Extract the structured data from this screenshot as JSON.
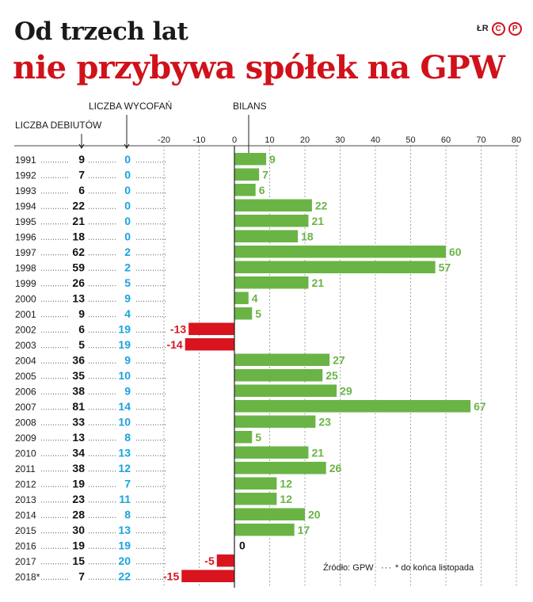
{
  "title_line1": "Od trzech lat",
  "title_line2": "nie przybywa spółek na GPW",
  "brand": {
    "initials": "ŁR",
    "mark": "P",
    "icon": "cp-logo-icon"
  },
  "headers": {
    "withdrawals": "LICZBA WYCOFAŃ",
    "balance": "BILANS",
    "debuts": "LICZBA DEBIUTÓW"
  },
  "source": "Źródło: GPW",
  "footnote": "* do końca listopada",
  "colors": {
    "positive": "#6ab446",
    "negative": "#d9141f",
    "withdrawals": "#1aa3df",
    "title_red": "#d0121b"
  },
  "chart_data": {
    "type": "bar",
    "orientation": "horizontal",
    "xlim": [
      -20,
      80
    ],
    "xticks": [
      "-20",
      "-10",
      "0",
      "10",
      "20",
      "30",
      "40",
      "50",
      "60",
      "70",
      "80"
    ],
    "grid": true,
    "rows": [
      {
        "year": "1991",
        "debuts": "9",
        "withdrawals": "0",
        "balance": 9
      },
      {
        "year": "1992",
        "debuts": "7",
        "withdrawals": "0",
        "balance": 7
      },
      {
        "year": "1993",
        "debuts": "6",
        "withdrawals": "0",
        "balance": 6
      },
      {
        "year": "1994",
        "debuts": "22",
        "withdrawals": "0",
        "balance": 22
      },
      {
        "year": "1995",
        "debuts": "21",
        "withdrawals": "0",
        "balance": 21
      },
      {
        "year": "1996",
        "debuts": "18",
        "withdrawals": "0",
        "balance": 18
      },
      {
        "year": "1997",
        "debuts": "62",
        "withdrawals": "2",
        "balance": 60
      },
      {
        "year": "1998",
        "debuts": "59",
        "withdrawals": "2",
        "balance": 57
      },
      {
        "year": "1999",
        "debuts": "26",
        "withdrawals": "5",
        "balance": 21
      },
      {
        "year": "2000",
        "debuts": "13",
        "withdrawals": "9",
        "balance": 4
      },
      {
        "year": "2001",
        "debuts": "9",
        "withdrawals": "4",
        "balance": 5
      },
      {
        "year": "2002",
        "debuts": "6",
        "withdrawals": "19",
        "balance": -13
      },
      {
        "year": "2003",
        "debuts": "5",
        "withdrawals": "19",
        "balance": -14
      },
      {
        "year": "2004",
        "debuts": "36",
        "withdrawals": "9",
        "balance": 27
      },
      {
        "year": "2005",
        "debuts": "35",
        "withdrawals": "10",
        "balance": 25
      },
      {
        "year": "2006",
        "debuts": "38",
        "withdrawals": "9",
        "balance": 29
      },
      {
        "year": "2007",
        "debuts": "81",
        "withdrawals": "14",
        "balance": 67
      },
      {
        "year": "2008",
        "debuts": "33",
        "withdrawals": "10",
        "balance": 23
      },
      {
        "year": "2009",
        "debuts": "13",
        "withdrawals": "8",
        "balance": 5
      },
      {
        "year": "2010",
        "debuts": "34",
        "withdrawals": "13",
        "balance": 21
      },
      {
        "year": "2011",
        "debuts": "38",
        "withdrawals": "12",
        "balance": 26
      },
      {
        "year": "2012",
        "debuts": "19",
        "withdrawals": "7",
        "balance": 12
      },
      {
        "year": "2013",
        "debuts": "23",
        "withdrawals": "11",
        "balance": 12
      },
      {
        "year": "2014",
        "debuts": "28",
        "withdrawals": "8",
        "balance": 20
      },
      {
        "year": "2015",
        "debuts": "30",
        "withdrawals": "13",
        "balance": 17
      },
      {
        "year": "2016",
        "debuts": "19",
        "withdrawals": "19",
        "balance": 0
      },
      {
        "year": "2017",
        "debuts": "15",
        "withdrawals": "20",
        "balance": -5
      },
      {
        "year": "2018*",
        "debuts": "7",
        "withdrawals": "22",
        "balance": -15
      }
    ]
  }
}
